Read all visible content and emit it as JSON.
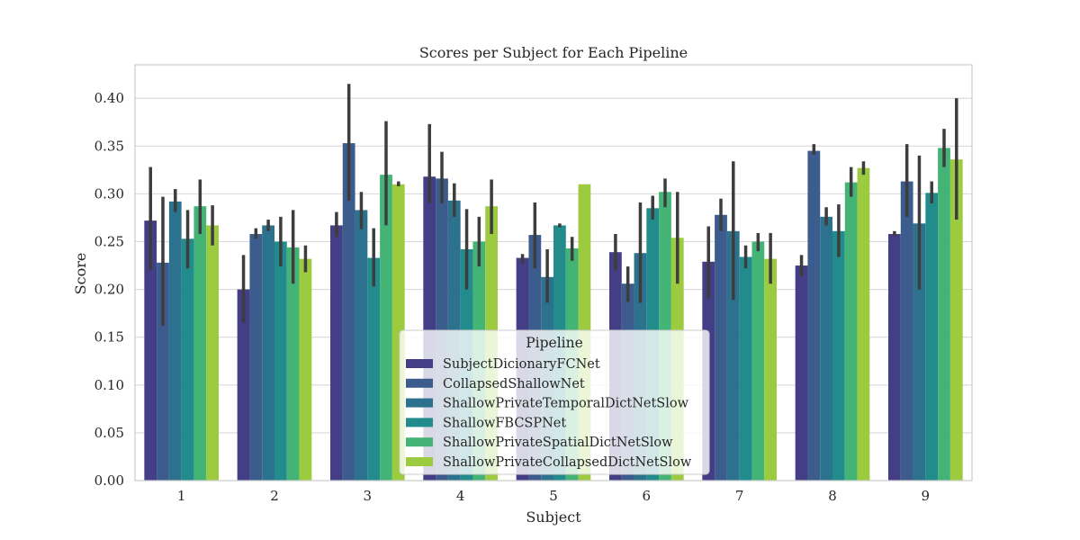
{
  "chart_data": {
    "type": "bar",
    "title": "Scores per Subject for Each Pipeline",
    "xlabel": "Subject",
    "ylabel": "Score",
    "ylim": [
      0,
      0.435
    ],
    "yticks": [
      "0.00",
      "0.05",
      "0.10",
      "0.15",
      "0.20",
      "0.25",
      "0.30",
      "0.35",
      "0.40"
    ],
    "grid": true,
    "legend_title": "Pipeline",
    "legend_position": "lower-center",
    "categories": [
      "1",
      "2",
      "3",
      "4",
      "5",
      "6",
      "7",
      "8",
      "9"
    ],
    "series": [
      {
        "name": "SubjectDicionaryFCNet",
        "color": "#433e85",
        "values": [
          0.272,
          0.2,
          0.267,
          0.318,
          0.233,
          0.239,
          0.229,
          0.225,
          0.258
        ],
        "err_low": [
          0.22,
          0.165,
          0.255,
          0.29,
          0.227,
          0.22,
          0.191,
          0.214,
          0.256
        ],
        "err_high": [
          0.328,
          0.236,
          0.281,
          0.373,
          0.237,
          0.258,
          0.266,
          0.236,
          0.261
        ]
      },
      {
        "name": "CollapsedShallowNet",
        "color": "#3b5c8c",
        "values": [
          0.228,
          0.258,
          0.353,
          0.316,
          0.257,
          0.206,
          0.278,
          0.345,
          0.313
        ],
        "err_low": [
          0.162,
          0.253,
          0.293,
          0.29,
          0.222,
          0.187,
          0.261,
          0.341,
          0.276
        ],
        "err_high": [
          0.297,
          0.264,
          0.415,
          0.344,
          0.291,
          0.224,
          0.295,
          0.352,
          0.352
        ]
      },
      {
        "name": "ShallowPrivateTemporalDictNetSlow",
        "color": "#2c728e",
        "values": [
          0.292,
          0.267,
          0.283,
          0.293,
          0.213,
          0.238,
          0.261,
          0.276,
          0.269
        ],
        "err_low": [
          0.281,
          0.261,
          0.263,
          0.276,
          0.186,
          0.186,
          0.189,
          0.267,
          0.2
        ],
        "err_high": [
          0.305,
          0.273,
          0.302,
          0.311,
          0.242,
          0.291,
          0.334,
          0.286,
          0.34
        ]
      },
      {
        "name": "ShallowFBCSPNet",
        "color": "#228c8d",
        "values": [
          0.253,
          0.25,
          0.233,
          0.242,
          0.267,
          0.285,
          0.234,
          0.261,
          0.301
        ],
        "err_low": [
          0.222,
          0.224,
          0.203,
          0.2,
          0.265,
          0.273,
          0.222,
          0.234,
          0.29
        ],
        "err_high": [
          0.283,
          0.276,
          0.264,
          0.284,
          0.269,
          0.298,
          0.246,
          0.289,
          0.313
        ]
      },
      {
        "name": "ShallowPrivateSpatialDictNetSlow",
        "color": "#44b376",
        "values": [
          0.287,
          0.244,
          0.32,
          0.25,
          0.243,
          0.302,
          0.25,
          0.312,
          0.348
        ],
        "err_low": [
          0.258,
          0.206,
          0.267,
          0.224,
          0.23,
          0.286,
          0.24,
          0.297,
          0.328
        ],
        "err_high": [
          0.315,
          0.283,
          0.376,
          0.276,
          0.255,
          0.316,
          0.259,
          0.328,
          0.368
        ]
      },
      {
        "name": "ShallowPrivateCollapsedDictNetSlow",
        "color": "#9dcb3f",
        "values": [
          0.267,
          0.232,
          0.31,
          0.287,
          0.31,
          0.254,
          0.232,
          0.327,
          0.336
        ],
        "err_low": [
          0.246,
          0.218,
          0.308,
          0.258,
          0.31,
          0.206,
          0.206,
          0.32,
          0.273
        ],
        "err_high": [
          0.288,
          0.246,
          0.313,
          0.315,
          0.31,
          0.302,
          0.259,
          0.334,
          0.4
        ]
      }
    ]
  }
}
